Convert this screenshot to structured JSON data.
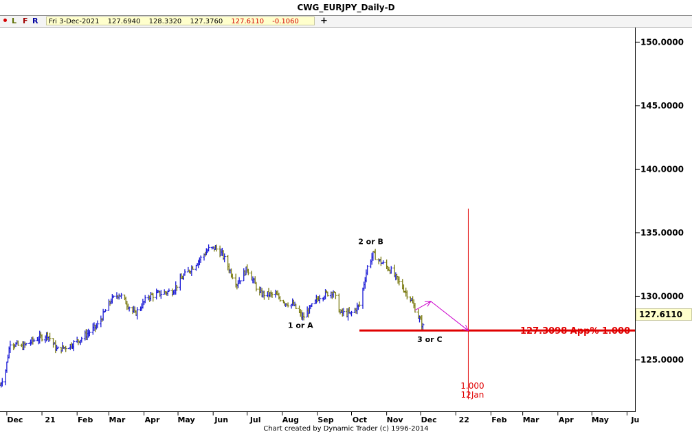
{
  "window": {
    "title": "CWG_EURJPY_Daily-D"
  },
  "toolbar": {
    "letters": [
      "L",
      "F",
      "R"
    ],
    "ohlc": {
      "date": "Fri 3-Dec-2021",
      "open": "127.6940",
      "high": "128.3320",
      "low": "127.3760",
      "close": "127.6110",
      "change": "-0.1060"
    },
    "plus": "+"
  },
  "footer": {
    "credit": "Chart created by Dynamic Trader  (c) 1996-2014"
  },
  "colors": {
    "up_bar": "#1a1ad6",
    "down_bar": "#7a7a10",
    "projection": "#e00000",
    "arrow": "#cc00cc",
    "ohlc_box": "#ffffcc"
  },
  "chart_data": {
    "type": "ohlc",
    "symbol": "CWG_EURJPY_Daily-D",
    "last_price": "127.6110",
    "y_axis": {
      "ticks": [
        "150.0000",
        "145.0000",
        "140.0000",
        "135.0000",
        "130.0000",
        "125.0000"
      ],
      "tick_values": [
        150,
        145,
        140,
        135,
        130,
        125
      ],
      "ylim": [
        121,
        151.1
      ]
    },
    "x_axis": {
      "ticks": [
        "Dec",
        "21",
        "Feb",
        "Mar",
        "Apr",
        "May",
        "Jun",
        "Jul",
        "Aug",
        "Sep",
        "Oct",
        "Nov",
        "Dec",
        "22",
        "Feb",
        "Mar",
        "Apr",
        "May",
        "Ju"
      ],
      "tick_dates": [
        "2020-12-01",
        "2021-01-01",
        "2021-02-01",
        "2021-03-01",
        "2021-04-01",
        "2021-05-01",
        "2021-06-01",
        "2021-07-01",
        "2021-08-01",
        "2021-09-01",
        "2021-10-01",
        "2021-11-01",
        "2021-12-01",
        "2022-01-01",
        "2022-02-01",
        "2022-03-01",
        "2022-04-01",
        "2022-05-01",
        "2022-06-01"
      ],
      "xlim": [
        "2020-11-25",
        "2022-06-08"
      ]
    },
    "price_path": [
      [
        "2020-11-25",
        123.0
      ],
      [
        "2020-11-30",
        124.2
      ],
      [
        "2020-12-04",
        126.4
      ],
      [
        "2020-12-14",
        126.0
      ],
      [
        "2020-12-24",
        126.5
      ],
      [
        "2021-01-06",
        127.0
      ],
      [
        "2021-01-14",
        125.8
      ],
      [
        "2021-01-25",
        126.1
      ],
      [
        "2021-02-05",
        126.7
      ],
      [
        "2021-02-19",
        127.7
      ],
      [
        "2021-03-03",
        129.7
      ],
      [
        "2021-03-10",
        130.2
      ],
      [
        "2021-03-18",
        129.3
      ],
      [
        "2021-03-24",
        128.6
      ],
      [
        "2021-04-05",
        130.0
      ],
      [
        "2021-04-19",
        130.3
      ],
      [
        "2021-04-26",
        130.4
      ],
      [
        "2021-05-06",
        131.6
      ],
      [
        "2021-05-17",
        132.6
      ],
      [
        "2021-05-28",
        133.7
      ],
      [
        "2021-06-03",
        133.8
      ],
      [
        "2021-06-09",
        133.3
      ],
      [
        "2021-06-17",
        131.8
      ],
      [
        "2021-06-22",
        131.0
      ],
      [
        "2021-07-01",
        132.2
      ],
      [
        "2021-07-12",
        130.2
      ],
      [
        "2021-07-26",
        130.1
      ],
      [
        "2021-08-04",
        129.5
      ],
      [
        "2021-08-11",
        129.3
      ],
      [
        "2021-08-19",
        128.3
      ],
      [
        "2021-09-03",
        130.0
      ],
      [
        "2021-09-15",
        130.4
      ],
      [
        "2021-09-21",
        128.7
      ],
      [
        "2021-09-30",
        128.6
      ],
      [
        "2021-10-08",
        129.3
      ],
      [
        "2021-10-15",
        132.3
      ],
      [
        "2021-10-20",
        133.3
      ],
      [
        "2021-10-28",
        132.6
      ],
      [
        "2021-11-05",
        132.0
      ],
      [
        "2021-11-15",
        130.7
      ],
      [
        "2021-11-22",
        129.8
      ],
      [
        "2021-12-03",
        127.6
      ]
    ],
    "annotations": {
      "wave_labels": [
        {
          "text": "2 or B",
          "date": "2021-10-18",
          "value": 134.1
        },
        {
          "text": "1 or A",
          "date": "2021-08-17",
          "value": 127.5
        },
        {
          "text": "3 or C",
          "date": "2021-12-09",
          "value": 126.4
        }
      ],
      "projection": {
        "label": "127.3098 App% 1.000",
        "value": 127.3098,
        "from_date": "2021-10-08",
        "to_date": "2022-06-08",
        "time_target_date": "2022-01-12",
        "time_vline_range": [
          121.9,
          136.9
        ],
        "time_label_ratio": "1.000",
        "time_label_date": "12Jan"
      },
      "arrow_path": [
        [
          "2021-11-26",
          128.9
        ],
        [
          "2021-12-10",
          129.6
        ],
        [
          "2022-01-12",
          127.3
        ]
      ]
    }
  }
}
